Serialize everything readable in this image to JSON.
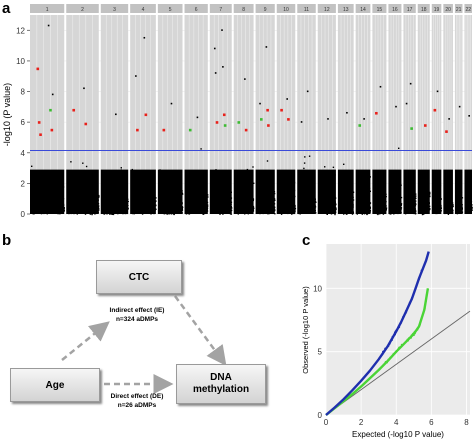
{
  "panels": {
    "a": "a",
    "b": "b",
    "c": "c"
  },
  "chart_data": [
    {
      "panel": "a",
      "type": "scatter",
      "ylabel": "-log10 (P value)",
      "ylim": [
        0,
        13
      ],
      "yticks": [
        0,
        2,
        4,
        6,
        8,
        10,
        12
      ],
      "grid": true,
      "chromosomes": [
        "1",
        "2",
        "3",
        "4",
        "5",
        "6",
        "7",
        "8",
        "9",
        "10",
        "11",
        "12",
        "13",
        "14",
        "15",
        "16",
        "17",
        "18",
        "19",
        "20",
        "21",
        "22"
      ],
      "threshold": 4.15,
      "threshold_color": "#3a4ad8",
      "base_color": "#000000",
      "highlight_colors": {
        "red": "#e8211b",
        "green": "#3dbb33"
      },
      "top_hits": [
        {
          "chr": "1",
          "value": 12.3
        },
        {
          "chr": "1",
          "value": 9.5,
          "color": "red"
        },
        {
          "chr": "1",
          "value": 6.8,
          "color": "green"
        },
        {
          "chr": "1",
          "value": 6.0,
          "color": "red"
        },
        {
          "chr": "1",
          "value": 5.5,
          "color": "red"
        },
        {
          "chr": "1",
          "value": 5.2,
          "color": "red"
        },
        {
          "chr": "1",
          "value": 7.8
        },
        {
          "chr": "2",
          "value": 8.2
        },
        {
          "chr": "2",
          "value": 6.8,
          "color": "red"
        },
        {
          "chr": "2",
          "value": 5.9,
          "color": "red"
        },
        {
          "chr": "3",
          "value": 6.5
        },
        {
          "chr": "4",
          "value": 11.5
        },
        {
          "chr": "4",
          "value": 9.0
        },
        {
          "chr": "4",
          "value": 6.5,
          "color": "red"
        },
        {
          "chr": "4",
          "value": 5.5,
          "color": "red"
        },
        {
          "chr": "5",
          "value": 7.2
        },
        {
          "chr": "5",
          "value": 5.5,
          "color": "red"
        },
        {
          "chr": "6",
          "value": 6.3
        },
        {
          "chr": "6",
          "value": 5.5,
          "color": "green"
        },
        {
          "chr": "7",
          "value": 12.0
        },
        {
          "chr": "7",
          "value": 10.8
        },
        {
          "chr": "7",
          "value": 9.6
        },
        {
          "chr": "7",
          "value": 9.2
        },
        {
          "chr": "7",
          "value": 6.5,
          "color": "red"
        },
        {
          "chr": "7",
          "value": 6.0,
          "color": "red"
        },
        {
          "chr": "7",
          "value": 5.8,
          "color": "green"
        },
        {
          "chr": "8",
          "value": 8.8
        },
        {
          "chr": "8",
          "value": 6.0,
          "color": "green"
        },
        {
          "chr": "8",
          "value": 5.5,
          "color": "red"
        },
        {
          "chr": "9",
          "value": 10.9
        },
        {
          "chr": "9",
          "value": 7.2
        },
        {
          "chr": "9",
          "value": 6.8,
          "color": "red"
        },
        {
          "chr": "9",
          "value": 6.2,
          "color": "green"
        },
        {
          "chr": "9",
          "value": 5.8,
          "color": "red"
        },
        {
          "chr": "10",
          "value": 7.5
        },
        {
          "chr": "10",
          "value": 6.8,
          "color": "red"
        },
        {
          "chr": "10",
          "value": 6.2,
          "color": "red"
        },
        {
          "chr": "11",
          "value": 8.0
        },
        {
          "chr": "11",
          "value": 6.0
        },
        {
          "chr": "12",
          "value": 6.2
        },
        {
          "chr": "13",
          "value": 6.6
        },
        {
          "chr": "14",
          "value": 6.2
        },
        {
          "chr": "14",
          "value": 5.8,
          "color": "green"
        },
        {
          "chr": "15",
          "value": 8.3
        },
        {
          "chr": "15",
          "value": 6.6,
          "color": "red"
        },
        {
          "chr": "16",
          "value": 7.0
        },
        {
          "chr": "17",
          "value": 8.5
        },
        {
          "chr": "17",
          "value": 7.2
        },
        {
          "chr": "17",
          "value": 5.6,
          "color": "green"
        },
        {
          "chr": "18",
          "value": 5.8,
          "color": "red"
        },
        {
          "chr": "19",
          "value": 8.0
        },
        {
          "chr": "19",
          "value": 6.8,
          "color": "red"
        },
        {
          "chr": "20",
          "value": 6.2
        },
        {
          "chr": "20",
          "value": 5.4,
          "color": "red"
        },
        {
          "chr": "21",
          "value": 7.0
        },
        {
          "chr": "22",
          "value": 6.4
        }
      ]
    },
    {
      "panel": "c",
      "type": "scatter",
      "xlabel": "Expected (-log10 P value)",
      "ylabel": "Observed (-log10 P value)",
      "xlim": [
        0,
        8.2
      ],
      "ylim": [
        0,
        13.5
      ],
      "xticks": [
        0,
        2,
        4,
        6,
        8
      ],
      "yticks": [
        0,
        5,
        10
      ],
      "series": [
        {
          "color": "#1f2fae",
          "x": [
            0,
            0.5,
            1,
            1.5,
            2,
            2.5,
            3,
            3.5,
            4,
            4.3,
            4.6,
            4.9,
            5.1,
            5.3,
            5.5,
            5.7,
            5.85
          ],
          "y": [
            0,
            0.6,
            1.25,
            1.95,
            2.7,
            3.5,
            4.4,
            5.4,
            6.6,
            7.4,
            8.3,
            9.2,
            10.0,
            10.8,
            11.5,
            12.2,
            12.9
          ]
        },
        {
          "color": "#4ad436",
          "x": [
            0,
            0.5,
            1,
            1.5,
            2,
            2.5,
            3,
            3.5,
            4,
            4.5,
            5,
            5.3,
            5.6,
            5.8
          ],
          "y": [
            0,
            0.55,
            1.1,
            1.65,
            2.25,
            2.9,
            3.55,
            4.25,
            5.0,
            5.7,
            6.4,
            7.0,
            8.3,
            10.0
          ]
        }
      ],
      "reference_line": {
        "x": [
          0,
          8.2
        ],
        "y": [
          0,
          8.2
        ],
        "color": "#666666"
      }
    }
  ],
  "diagram": {
    "nodes": {
      "ctc": "CTC",
      "age": "Age",
      "dna_line1": "DNA",
      "dna_line2": "methylation"
    },
    "edges": {
      "indirect_line1": "Indirect effect (IE)",
      "indirect_line2": "n=324 aDMPs",
      "direct_line1": "Direct effect (DE)",
      "direct_line2": "n=26 aDMPs"
    }
  }
}
